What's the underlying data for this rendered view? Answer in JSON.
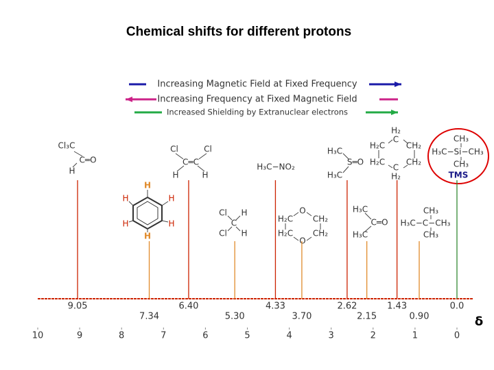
{
  "chart_data": {
    "type": "stick",
    "title": "Chemical shifts for different protons",
    "arrows": [
      {
        "text": "Increasing Magnetic Field at Fixed Frequency",
        "color": "#1a1aa8",
        "direction": "right"
      },
      {
        "text": "Increasing Frequency at Fixed Magnetic Field",
        "color": "#cc2288",
        "direction": "left"
      },
      {
        "text": "Increased Shielding by Extranuclear electrons",
        "color": "#22aa44",
        "direction": "right"
      }
    ],
    "x": [
      9.05,
      7.34,
      6.4,
      5.3,
      4.33,
      3.7,
      2.62,
      2.15,
      1.43,
      0.9,
      0.0
    ],
    "value_labels": [
      "9.05",
      "7.34",
      "6.40",
      "5.30",
      "4.33",
      "3.70",
      "2.62",
      "2.15",
      "1.43",
      "0.90",
      "0.0"
    ],
    "colors": [
      "#cc2200",
      "#e08a2a",
      "#cc2200",
      "#e08a2a",
      "#cc2200",
      "#e08a2a",
      "#cc2200",
      "#e08a2a",
      "#cc2200",
      "#e08a2a",
      "#338833"
    ],
    "xlim": [
      10,
      0
    ],
    "xticks": [
      10,
      9,
      8,
      7,
      6,
      5,
      4,
      3,
      2,
      1,
      0
    ],
    "x_label": "δ",
    "annotations": [
      "Cl₃C",
      "C═O",
      "H",
      "Cl",
      "Cl",
      "C═C",
      "H",
      "H",
      "H₃C−NO₂",
      "H₃C",
      "S═O",
      "H₃C",
      "H₂",
      "C",
      "H₂C",
      "CH₂",
      "H₂C",
      "CH₂",
      "C",
      "H₂",
      "CH₃",
      "H₃C−Si−CH₃",
      "CH₃",
      "TMS",
      "H",
      "H",
      "H",
      "H",
      "H",
      "H",
      "Cl",
      "H",
      "C",
      "Cl",
      "H",
      "O",
      "H₂C",
      "CH₂",
      "H₂C",
      "CH₂",
      "O",
      "H₃C",
      "C═O",
      "H₃C",
      "CH₃",
      "H₃C−C−CH₃",
      "CH₃"
    ]
  }
}
